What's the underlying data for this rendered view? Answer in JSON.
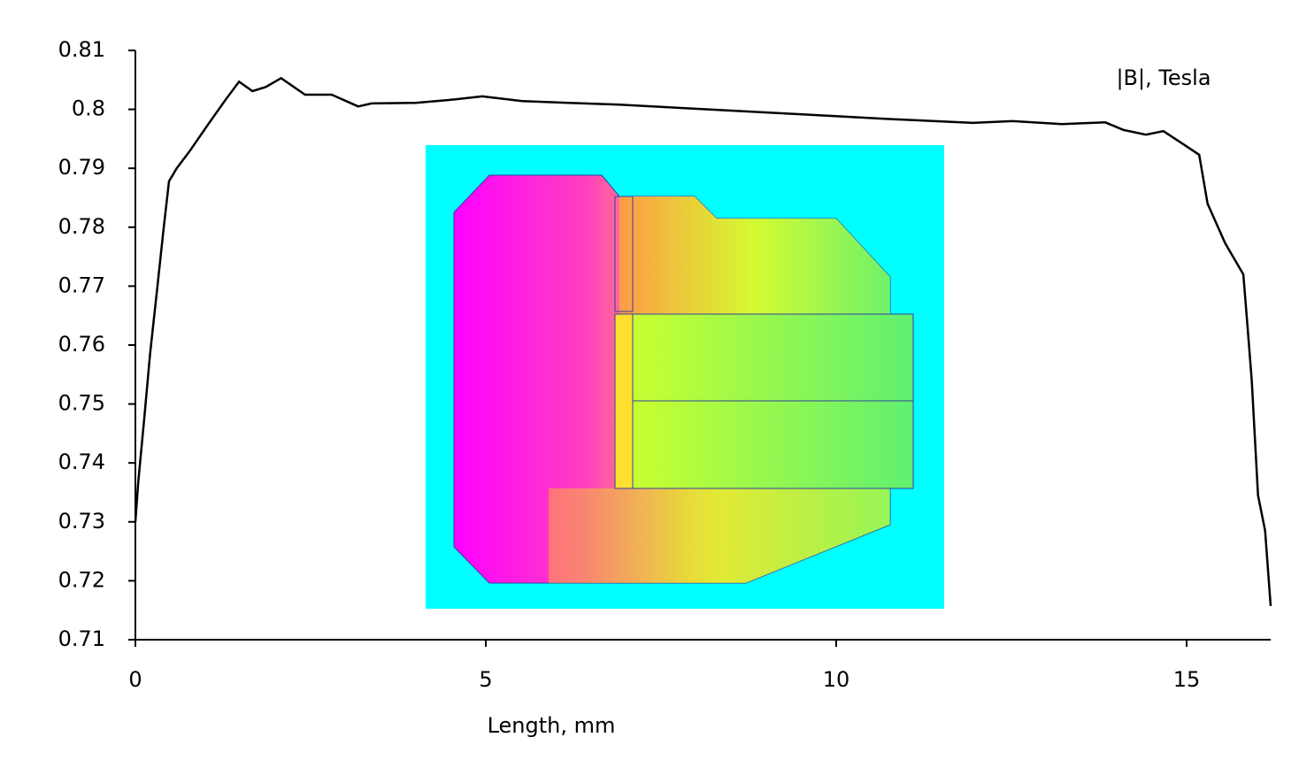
{
  "chart_data": {
    "type": "line",
    "annotation": "|B|, Tesla",
    "xlabel": "Length, mm",
    "color": "#000000",
    "x": [
      0,
      0.04,
      0.13,
      0.21,
      0.32,
      0.4,
      0.48,
      0.59,
      0.78,
      1.04,
      1.29,
      1.48,
      1.67,
      1.86,
      2.08,
      2.42,
      2.8,
      3.18,
      3.37,
      4.0,
      4.57,
      4.95,
      5.52,
      6.9,
      8.17,
      9.43,
      10.69,
      11.95,
      12.52,
      13.22,
      13.84,
      14.1,
      14.42,
      14.67,
      14.99,
      15.18,
      15.3,
      15.55,
      15.81,
      15.87,
      15.93,
      16.02,
      16.12,
      16.2
    ],
    "values": [
      0.73,
      0.7367,
      0.748,
      0.7585,
      0.7705,
      0.7795,
      0.7878,
      0.79,
      0.793,
      0.7975,
      0.8017,
      0.8047,
      0.8031,
      0.8038,
      0.8053,
      0.8025,
      0.8025,
      0.8005,
      0.801,
      0.8011,
      0.8017,
      0.8022,
      0.8014,
      0.8008,
      0.8,
      0.7992,
      0.7984,
      0.7977,
      0.798,
      0.7975,
      0.7978,
      0.7965,
      0.7957,
      0.7963,
      0.7938,
      0.7923,
      0.784,
      0.7773,
      0.772,
      0.763,
      0.754,
      0.7345,
      0.7285,
      0.7157
    ],
    "xlim": [
      0,
      16.2
    ],
    "xticks": [
      0,
      5,
      10,
      15
    ],
    "ylim": [
      0.71,
      0.81
    ],
    "yticks": [
      0.71,
      0.72,
      0.73,
      0.74,
      0.75,
      0.76,
      0.77,
      0.78,
      0.79,
      0.8,
      0.81
    ]
  }
}
